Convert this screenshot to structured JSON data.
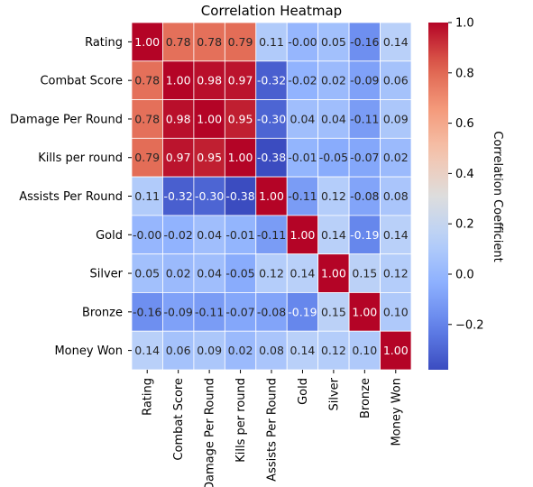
{
  "chart_data": {
    "type": "heatmap",
    "title": "Correlation Heatmap",
    "colorbar_label": "Correlation Coefficient",
    "row_labels": [
      "Rating",
      "Combat Score",
      "Damage Per Round",
      "Kills per round",
      "Assists Per Round",
      "Gold",
      "Silver",
      "Bronze",
      "Money Won"
    ],
    "col_labels": [
      "Rating",
      "Combat Score",
      "Damage Per Round",
      "Kills per round",
      "Assists Per Round",
      "Gold",
      "Silver",
      "Bronze",
      "Money Won"
    ],
    "values": [
      [
        1.0,
        0.78,
        0.78,
        0.79,
        0.11,
        -0.0,
        0.05,
        -0.16,
        0.14
      ],
      [
        0.78,
        1.0,
        0.98,
        0.97,
        -0.32,
        -0.02,
        0.02,
        -0.09,
        0.06
      ],
      [
        0.78,
        0.98,
        1.0,
        0.95,
        -0.3,
        0.04,
        0.04,
        -0.11,
        0.09
      ],
      [
        0.79,
        0.97,
        0.95,
        1.0,
        -0.38,
        -0.01,
        -0.05,
        -0.07,
        0.02
      ],
      [
        0.11,
        -0.32,
        -0.3,
        -0.38,
        1.0,
        -0.11,
        0.12,
        -0.08,
        0.08
      ],
      [
        -0.0,
        -0.02,
        0.04,
        -0.01,
        -0.11,
        1.0,
        0.14,
        -0.19,
        0.14
      ],
      [
        0.05,
        0.02,
        0.04,
        -0.05,
        0.12,
        0.14,
        1.0,
        0.15,
        0.12
      ],
      [
        -0.16,
        -0.09,
        -0.11,
        -0.07,
        -0.08,
        -0.19,
        0.15,
        1.0,
        0.1
      ],
      [
        0.14,
        0.06,
        0.09,
        0.02,
        0.08,
        0.14,
        0.12,
        0.1,
        1.0
      ]
    ],
    "value_labels": [
      [
        "1.00",
        "0.78",
        "0.78",
        "0.79",
        "0.11",
        "-0.00",
        "0.05",
        "-0.16",
        "0.14"
      ],
      [
        "0.78",
        "1.00",
        "0.98",
        "0.97",
        "-0.32",
        "-0.02",
        "0.02",
        "-0.09",
        "0.06"
      ],
      [
        "0.78",
        "0.98",
        "1.00",
        "0.95",
        "-0.30",
        "0.04",
        "0.04",
        "-0.11",
        "0.09"
      ],
      [
        "0.79",
        "0.97",
        "0.95",
        "1.00",
        "-0.38",
        "-0.01",
        "-0.05",
        "-0.07",
        "0.02"
      ],
      [
        "0.11",
        "-0.32",
        "-0.30",
        "-0.38",
        "1.00",
        "-0.11",
        "0.12",
        "-0.08",
        "0.08"
      ],
      [
        "-0.00",
        "-0.02",
        "0.04",
        "-0.01",
        "-0.11",
        "1.00",
        "0.14",
        "-0.19",
        "0.14"
      ],
      [
        "0.05",
        "0.02",
        "0.04",
        "-0.05",
        "0.12",
        "0.14",
        "1.00",
        "0.15",
        "0.12"
      ],
      [
        "-0.16",
        "-0.09",
        "-0.11",
        "-0.07",
        "-0.08",
        "-0.19",
        "0.15",
        "1.00",
        "0.10"
      ],
      [
        "0.14",
        "0.06",
        "0.09",
        "0.02",
        "0.08",
        "0.14",
        "0.12",
        "0.10",
        "1.00"
      ]
    ],
    "colormap": "coolwarm",
    "colorbar_range": [
      -0.38,
      1.0
    ],
    "colorbar_ticks": [
      1.0,
      0.8,
      0.6,
      0.4,
      0.2,
      0.0,
      -0.2
    ],
    "colorbar_tick_labels": [
      "1.0",
      "0.8",
      "0.6",
      "0.4",
      "0.2",
      "0.0",
      "−0.2"
    ],
    "grid_lines": "white"
  }
}
